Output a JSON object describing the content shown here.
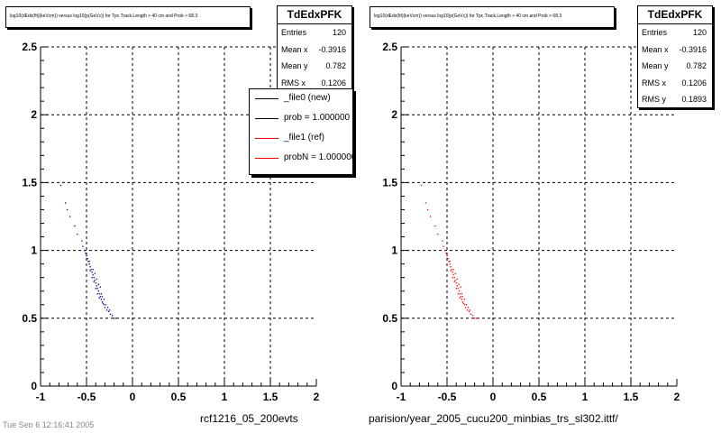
{
  "colors": {
    "ref": "#ff0000",
    "new_markers": "#00008b",
    "grid": "#000000"
  },
  "panels": [
    {
      "id": "left",
      "title": "log10(dEdx(fit)(keVcm)) versus log10(p(GeVc)) for Tpc.Track.Length > 40 cm and Prob > 68.3",
      "stats": {
        "name": "TdEdxPFK",
        "rows": [
          {
            "label": "Entries",
            "value": "120"
          },
          {
            "label": "Mean x",
            "value": "-0.3916"
          },
          {
            "label": "Mean y",
            "value": "0.782"
          },
          {
            "label": "RMS x",
            "value": "0.1206"
          }
        ]
      },
      "legend": [
        {
          "label": "_file0 (new)",
          "color": "#000000"
        },
        {
          "label": "prob = 1.000000",
          "color": "#000000"
        },
        {
          "label": "_file1 (ref)",
          "color": "#ff0000"
        },
        {
          "label": "probN = 1.000000",
          "color": "#ff0000"
        }
      ],
      "footer": "rcf1216_05_200evts"
    },
    {
      "id": "right",
      "title": "log10(dEdx(fit)(keVcm)) versus log10(p(GeVc)) for Tpc.Track.Length > 40 cm and Prob > 68.3",
      "stats": {
        "name": "TdEdxPFK",
        "rows": [
          {
            "label": "Entries",
            "value": "120"
          },
          {
            "label": "Mean x",
            "value": "-0.3916"
          },
          {
            "label": "Mean y",
            "value": "0.782"
          },
          {
            "label": "RMS x",
            "value": "0.1206"
          },
          {
            "label": "RMS y",
            "value": "0.1893"
          }
        ]
      },
      "footer": "parision/year_2005_cucu200_minbias_trs_sl302.ittf/"
    }
  ],
  "date_stamp": "Tue Sep 6 12:16:41 2005",
  "chart_data": [
    {
      "type": "scatter",
      "xlim": [
        -1,
        2
      ],
      "ylim": [
        0,
        2.5
      ],
      "x_ticks": [
        "-1",
        "-0.5",
        "0",
        "0.5",
        "1",
        "1.5",
        "2"
      ],
      "y_ticks": [
        "0",
        "0.5",
        "1",
        "1.5",
        "2",
        "2.5"
      ],
      "grid": true,
      "series": [
        {
          "color": "#00008b",
          "points": [
            [
              -0.78,
              1.48
            ],
            [
              -0.73,
              1.35
            ],
            [
              -0.71,
              1.3
            ],
            [
              -0.68,
              1.25
            ],
            [
              -0.63,
              1.18
            ],
            [
              -0.6,
              1.12
            ],
            [
              -0.55,
              1.07
            ],
            [
              -0.54,
              1.03
            ],
            [
              -0.52,
              1.0
            ],
            [
              -0.51,
              0.98
            ],
            [
              -0.5,
              0.96
            ],
            [
              -0.49,
              0.94
            ],
            [
              -0.48,
              0.92
            ],
            [
              -0.47,
              0.9
            ],
            [
              -0.46,
              0.88
            ],
            [
              -0.45,
              0.86
            ],
            [
              -0.44,
              0.84
            ],
            [
              -0.43,
              0.82
            ],
            [
              -0.42,
              0.8
            ],
            [
              -0.41,
              0.78
            ],
            [
              -0.4,
              0.76
            ],
            [
              -0.39,
              0.74
            ],
            [
              -0.38,
              0.72
            ],
            [
              -0.37,
              0.7
            ],
            [
              -0.36,
              0.68
            ],
            [
              -0.35,
              0.66
            ],
            [
              -0.34,
              0.64
            ],
            [
              -0.33,
              0.62
            ],
            [
              -0.32,
              0.61
            ],
            [
              -0.31,
              0.6
            ],
            [
              -0.3,
              0.58
            ],
            [
              -0.28,
              0.56
            ],
            [
              -0.26,
              0.55
            ],
            [
              -0.24,
              0.53
            ],
            [
              -0.22,
              0.52
            ],
            [
              -0.2,
              0.5
            ],
            [
              -0.18,
              0.5
            ],
            [
              -0.46,
              0.85
            ],
            [
              -0.44,
              0.8
            ],
            [
              -0.42,
              0.77
            ],
            [
              -0.4,
              0.72
            ],
            [
              -0.38,
              0.68
            ],
            [
              -0.36,
              0.65
            ],
            [
              -0.34,
              0.68
            ],
            [
              -0.33,
              0.66
            ],
            [
              -0.31,
              0.64
            ],
            [
              -0.29,
              0.6
            ],
            [
              -0.27,
              0.58
            ],
            [
              -0.25,
              0.56
            ],
            [
              -0.47,
              0.92
            ],
            [
              -0.43,
              0.86
            ],
            [
              -0.41,
              0.83
            ],
            [
              -0.39,
              0.79
            ],
            [
              -0.37,
              0.75
            ],
            [
              -0.35,
              0.73
            ]
          ]
        }
      ]
    },
    {
      "type": "scatter",
      "xlim": [
        -1,
        2
      ],
      "ylim": [
        0,
        2.5
      ],
      "x_ticks": [
        "-1",
        "-0.5",
        "0",
        "0.5",
        "1",
        "1.5",
        "2"
      ],
      "y_ticks": [
        "0",
        "0.5",
        "1",
        "1.5",
        "2",
        "2.5"
      ],
      "grid": true,
      "series": [
        {
          "color": "#ff0000",
          "points": [
            [
              -0.78,
              1.48
            ],
            [
              -0.73,
              1.35
            ],
            [
              -0.71,
              1.3
            ],
            [
              -0.68,
              1.25
            ],
            [
              -0.63,
              1.18
            ],
            [
              -0.6,
              1.12
            ],
            [
              -0.55,
              1.07
            ],
            [
              -0.54,
              1.03
            ],
            [
              -0.52,
              1.0
            ],
            [
              -0.51,
              0.98
            ],
            [
              -0.5,
              0.96
            ],
            [
              -0.49,
              0.94
            ],
            [
              -0.48,
              0.92
            ],
            [
              -0.47,
              0.9
            ],
            [
              -0.46,
              0.88
            ],
            [
              -0.45,
              0.86
            ],
            [
              -0.44,
              0.84
            ],
            [
              -0.43,
              0.82
            ],
            [
              -0.42,
              0.8
            ],
            [
              -0.41,
              0.78
            ],
            [
              -0.4,
              0.76
            ],
            [
              -0.39,
              0.74
            ],
            [
              -0.38,
              0.72
            ],
            [
              -0.37,
              0.7
            ],
            [
              -0.36,
              0.68
            ],
            [
              -0.35,
              0.66
            ],
            [
              -0.34,
              0.64
            ],
            [
              -0.33,
              0.62
            ],
            [
              -0.32,
              0.61
            ],
            [
              -0.31,
              0.6
            ],
            [
              -0.3,
              0.58
            ],
            [
              -0.28,
              0.56
            ],
            [
              -0.26,
              0.55
            ],
            [
              -0.24,
              0.53
            ],
            [
              -0.22,
              0.52
            ],
            [
              -0.2,
              0.5
            ],
            [
              -0.18,
              0.5
            ],
            [
              -0.46,
              0.85
            ],
            [
              -0.44,
              0.8
            ],
            [
              -0.42,
              0.77
            ],
            [
              -0.4,
              0.72
            ],
            [
              -0.38,
              0.68
            ],
            [
              -0.36,
              0.65
            ],
            [
              -0.34,
              0.68
            ],
            [
              -0.33,
              0.66
            ],
            [
              -0.31,
              0.64
            ],
            [
              -0.29,
              0.6
            ],
            [
              -0.27,
              0.58
            ],
            [
              -0.25,
              0.56
            ],
            [
              -0.47,
              0.92
            ],
            [
              -0.43,
              0.86
            ],
            [
              -0.41,
              0.83
            ],
            [
              -0.39,
              0.79
            ],
            [
              -0.37,
              0.75
            ],
            [
              -0.35,
              0.73
            ]
          ]
        }
      ]
    }
  ]
}
